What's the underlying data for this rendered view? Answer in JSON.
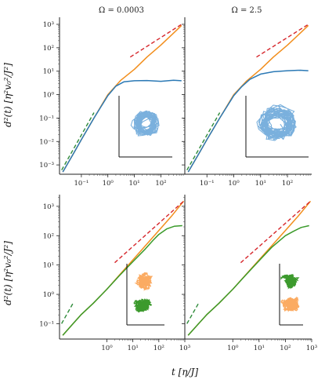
{
  "titles": [
    "Ω = 0.0003",
    "Ω = 2.5"
  ],
  "ylabel": "d²(t) [η²v₀²/J²]",
  "xlabel": "t [η/J]",
  "colors": {
    "orange": "#f28e1c",
    "blue": "#2b79b5",
    "green": "#3a9a2a",
    "red_dash": "#d6262b",
    "green_dash": "#2e8b3a",
    "inset_blue": "#7ab0dd",
    "inset_orange": "#fbab62",
    "inset_green": "#3c9a2d"
  },
  "chart_data": [
    {
      "type": "line",
      "panel": "top-left",
      "title": "Ω = 0.0003",
      "xscale": "log",
      "yscale": "log",
      "xlim": [
        0.015,
        800
      ],
      "ylim": [
        0.0004,
        2000
      ],
      "xticks": [
        "10⁻¹",
        "10⁰",
        "10¹",
        "10²"
      ],
      "yticks": [
        "10⁻³",
        "10⁻²",
        "10⁻¹",
        "10⁰",
        "10¹",
        "10²",
        "10³"
      ],
      "series": [
        {
          "color": "orange",
          "style": "solid",
          "x": [
            0.02,
            0.05,
            0.1,
            0.3,
            1,
            3,
            10,
            30,
            100,
            300,
            600
          ],
          "y": [
            0.0005,
            0.003,
            0.012,
            0.1,
            1.0,
            4.0,
            12,
            40,
            130,
            420,
            900
          ]
        },
        {
          "color": "blue",
          "style": "solid",
          "x": [
            0.02,
            0.05,
            0.1,
            0.3,
            1,
            2,
            4,
            10,
            30,
            100,
            300,
            600
          ],
          "y": [
            0.0005,
            0.003,
            0.012,
            0.1,
            0.9,
            2.3,
            3.5,
            3.9,
            4.0,
            3.7,
            4.1,
            3.9
          ]
        },
        {
          "color": "green_dash",
          "style": "dashed",
          "x": [
            0.018,
            0.3
          ],
          "y": [
            0.0006,
            0.17
          ]
        },
        {
          "color": "red_dash",
          "style": "dashed",
          "x": [
            7,
            600
          ],
          "y": [
            40,
            1000
          ]
        }
      ]
    },
    {
      "type": "line",
      "panel": "top-right",
      "title": "Ω = 2.5",
      "xscale": "log",
      "yscale": "log",
      "xlim": [
        0.015,
        800
      ],
      "ylim": [
        0.0004,
        2000
      ],
      "xticks": [
        "10⁻¹",
        "10⁰",
        "10¹",
        "10²"
      ],
      "series": [
        {
          "color": "orange",
          "style": "solid",
          "x": [
            0.02,
            0.05,
            0.1,
            0.3,
            1,
            3,
            10,
            30,
            100,
            300,
            600
          ],
          "y": [
            0.0005,
            0.003,
            0.012,
            0.1,
            1.0,
            3.8,
            12,
            40,
            130,
            420,
            900
          ]
        },
        {
          "color": "blue",
          "style": "solid",
          "x": [
            0.02,
            0.05,
            0.1,
            0.3,
            1,
            2,
            4,
            10,
            30,
            100,
            300,
            600
          ],
          "y": [
            0.0005,
            0.003,
            0.012,
            0.1,
            0.9,
            2.2,
            4.5,
            7.5,
            9.5,
            10.5,
            11,
            10.5
          ]
        },
        {
          "color": "green_dash",
          "style": "dashed",
          "x": [
            0.018,
            0.3
          ],
          "y": [
            0.0006,
            0.17
          ]
        },
        {
          "color": "red_dash",
          "style": "dashed",
          "x": [
            7,
            600
          ],
          "y": [
            40,
            1000
          ]
        }
      ]
    },
    {
      "type": "line",
      "panel": "bottom-left",
      "xscale": "log",
      "yscale": "log",
      "xlim": [
        0.015,
        1000
      ],
      "ylim": [
        0.03,
        2500
      ],
      "xticks": [
        "10⁰",
        "10¹",
        "10²",
        "10³"
      ],
      "yticks": [
        "10⁻¹",
        "10⁰",
        "10¹",
        "10²",
        "10³"
      ],
      "series": [
        {
          "color": "orange",
          "style": "solid",
          "x": [
            0.02,
            0.05,
            0.1,
            0.3,
            1,
            3,
            10,
            30,
            100,
            300,
            900
          ],
          "y": [
            0.04,
            0.1,
            0.2,
            0.5,
            1.5,
            4.5,
            15,
            45,
            150,
            450,
            1500
          ]
        },
        {
          "color": "green",
          "style": "solid",
          "x": [
            0.02,
            0.05,
            0.1,
            0.3,
            1,
            3,
            10,
            30,
            60,
            100,
            200,
            400,
            800
          ],
          "y": [
            0.04,
            0.1,
            0.2,
            0.5,
            1.5,
            4.3,
            13,
            35,
            70,
            110,
            170,
            210,
            220
          ]
        },
        {
          "color": "green_dash",
          "style": "dashed",
          "x": [
            0.018,
            0.05
          ],
          "y": [
            0.1,
            0.5
          ]
        },
        {
          "color": "red_dash",
          "style": "dashed",
          "x": [
            2,
            900
          ],
          "y": [
            12,
            1500
          ]
        }
      ]
    },
    {
      "type": "line",
      "panel": "bottom-right",
      "xscale": "log",
      "yscale": "log",
      "xlim": [
        0.015,
        1000
      ],
      "ylim": [
        0.03,
        2500
      ],
      "xticks": [
        "10⁰",
        "10¹",
        "10²",
        "10³"
      ],
      "series": [
        {
          "color": "orange",
          "style": "solid",
          "x": [
            0.02,
            0.05,
            0.1,
            0.3,
            1,
            3,
            10,
            30,
            100,
            300,
            900
          ],
          "y": [
            0.04,
            0.1,
            0.2,
            0.5,
            1.5,
            4.5,
            15,
            45,
            150,
            450,
            1500
          ]
        },
        {
          "color": "green",
          "style": "solid",
          "x": [
            0.02,
            0.05,
            0.1,
            0.3,
            1,
            3,
            10,
            30,
            100,
            200,
            400,
            800
          ],
          "y": [
            0.04,
            0.1,
            0.2,
            0.5,
            1.5,
            4.4,
            14,
            40,
            100,
            140,
            190,
            220
          ]
        },
        {
          "color": "green_dash",
          "style": "dashed",
          "x": [
            0.018,
            0.05
          ],
          "y": [
            0.1,
            0.5
          ]
        },
        {
          "color": "red_dash",
          "style": "dashed",
          "x": [
            2,
            900
          ],
          "y": [
            12,
            1500
          ]
        }
      ]
    }
  ]
}
